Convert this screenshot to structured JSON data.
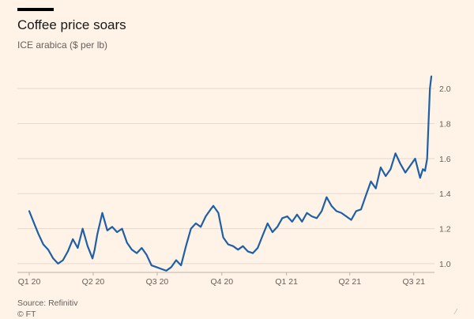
{
  "header": {
    "title": "Coffee price soars",
    "subtitle": "ICE arabica ($ per lb)"
  },
  "footer": {
    "source": "Source: Refinitiv",
    "credit": "© FT"
  },
  "colors": {
    "background": "#fff2e6",
    "line": "#1f5fa6",
    "grid": "#e6d9ce",
    "text": "#66605c"
  },
  "chart_data": {
    "type": "line",
    "title": "Coffee price soars",
    "subtitle": "ICE arabica ($ per lb)",
    "xlabel": "",
    "ylabel": "",
    "x_ticks": [
      "Q1 20",
      "Q2 20",
      "Q3 20",
      "Q4 20",
      "Q1 21",
      "Q2 21",
      "Q3 21"
    ],
    "y_ticks": [
      1.0,
      1.2,
      1.4,
      1.6,
      1.8,
      2.0
    ],
    "y_tick_labels": [
      "1.0",
      "1.2",
      "1.4",
      "1.6",
      "1.8",
      "2.0"
    ],
    "xlim": [
      "2020-01-01",
      "2021-07-26"
    ],
    "ylim": [
      0.95,
      2.1
    ],
    "grid": "horizontal",
    "y_axis_side": "right",
    "series": [
      {
        "values": [
          [
            "2020-01-01",
            1.3
          ],
          [
            "2020-01-07",
            1.24
          ],
          [
            "2020-01-14",
            1.17
          ],
          [
            "2020-01-21",
            1.11
          ],
          [
            "2020-01-28",
            1.08
          ],
          [
            "2020-02-04",
            1.03
          ],
          [
            "2020-02-11",
            1.0
          ],
          [
            "2020-02-18",
            1.02
          ],
          [
            "2020-02-25",
            1.07
          ],
          [
            "2020-03-03",
            1.14
          ],
          [
            "2020-03-10",
            1.09
          ],
          [
            "2020-03-17",
            1.2
          ],
          [
            "2020-03-24",
            1.1
          ],
          [
            "2020-03-31",
            1.03
          ],
          [
            "2020-04-03",
            1.08
          ],
          [
            "2020-04-07",
            1.17
          ],
          [
            "2020-04-14",
            1.29
          ],
          [
            "2020-04-21",
            1.19
          ],
          [
            "2020-04-28",
            1.21
          ],
          [
            "2020-05-05",
            1.18
          ],
          [
            "2020-05-12",
            1.2
          ],
          [
            "2020-05-19",
            1.12
          ],
          [
            "2020-05-26",
            1.08
          ],
          [
            "2020-06-02",
            1.06
          ],
          [
            "2020-06-09",
            1.09
          ],
          [
            "2020-06-16",
            1.05
          ],
          [
            "2020-06-23",
            0.99
          ],
          [
            "2020-06-30",
            0.98
          ],
          [
            "2020-07-07",
            0.97
          ],
          [
            "2020-07-14",
            0.96
          ],
          [
            "2020-07-21",
            0.98
          ],
          [
            "2020-07-28",
            1.02
          ],
          [
            "2020-08-04",
            0.99
          ],
          [
            "2020-08-11",
            1.1
          ],
          [
            "2020-08-18",
            1.2
          ],
          [
            "2020-08-25",
            1.23
          ],
          [
            "2020-09-01",
            1.21
          ],
          [
            "2020-09-08",
            1.27
          ],
          [
            "2020-09-15",
            1.31
          ],
          [
            "2020-09-19",
            1.33
          ],
          [
            "2020-09-26",
            1.29
          ],
          [
            "2020-10-03",
            1.15
          ],
          [
            "2020-10-10",
            1.11
          ],
          [
            "2020-10-17",
            1.1
          ],
          [
            "2020-10-24",
            1.08
          ],
          [
            "2020-10-31",
            1.1
          ],
          [
            "2020-11-07",
            1.07
          ],
          [
            "2020-11-14",
            1.06
          ],
          [
            "2020-11-21",
            1.09
          ],
          [
            "2020-11-28",
            1.16
          ],
          [
            "2020-12-05",
            1.23
          ],
          [
            "2020-12-12",
            1.18
          ],
          [
            "2020-12-19",
            1.21
          ],
          [
            "2020-12-26",
            1.26
          ],
          [
            "2021-01-02",
            1.27
          ],
          [
            "2021-01-09",
            1.24
          ],
          [
            "2021-01-16",
            1.28
          ],
          [
            "2021-01-23",
            1.24
          ],
          [
            "2021-01-30",
            1.29
          ],
          [
            "2021-02-06",
            1.27
          ],
          [
            "2021-02-13",
            1.26
          ],
          [
            "2021-02-20",
            1.3
          ],
          [
            "2021-02-27",
            1.38
          ],
          [
            "2021-03-06",
            1.33
          ],
          [
            "2021-03-13",
            1.3
          ],
          [
            "2021-03-20",
            1.29
          ],
          [
            "2021-03-27",
            1.27
          ],
          [
            "2021-04-03",
            1.25
          ],
          [
            "2021-04-10",
            1.3
          ],
          [
            "2021-04-17",
            1.31
          ],
          [
            "2021-04-24",
            1.39
          ],
          [
            "2021-05-01",
            1.47
          ],
          [
            "2021-05-08",
            1.43
          ],
          [
            "2021-05-15",
            1.55
          ],
          [
            "2021-05-22",
            1.5
          ],
          [
            "2021-05-29",
            1.54
          ],
          [
            "2021-06-05",
            1.63
          ],
          [
            "2021-06-12",
            1.57
          ],
          [
            "2021-06-19",
            1.52
          ],
          [
            "2021-06-26",
            1.56
          ],
          [
            "2021-07-03",
            1.6
          ],
          [
            "2021-07-10",
            1.49
          ],
          [
            "2021-07-14",
            1.54
          ],
          [
            "2021-07-17",
            1.53
          ],
          [
            "2021-07-20",
            1.6
          ],
          [
            "2021-07-22",
            1.8
          ],
          [
            "2021-07-24",
            2.0
          ],
          [
            "2021-07-26",
            2.07
          ]
        ]
      }
    ]
  }
}
